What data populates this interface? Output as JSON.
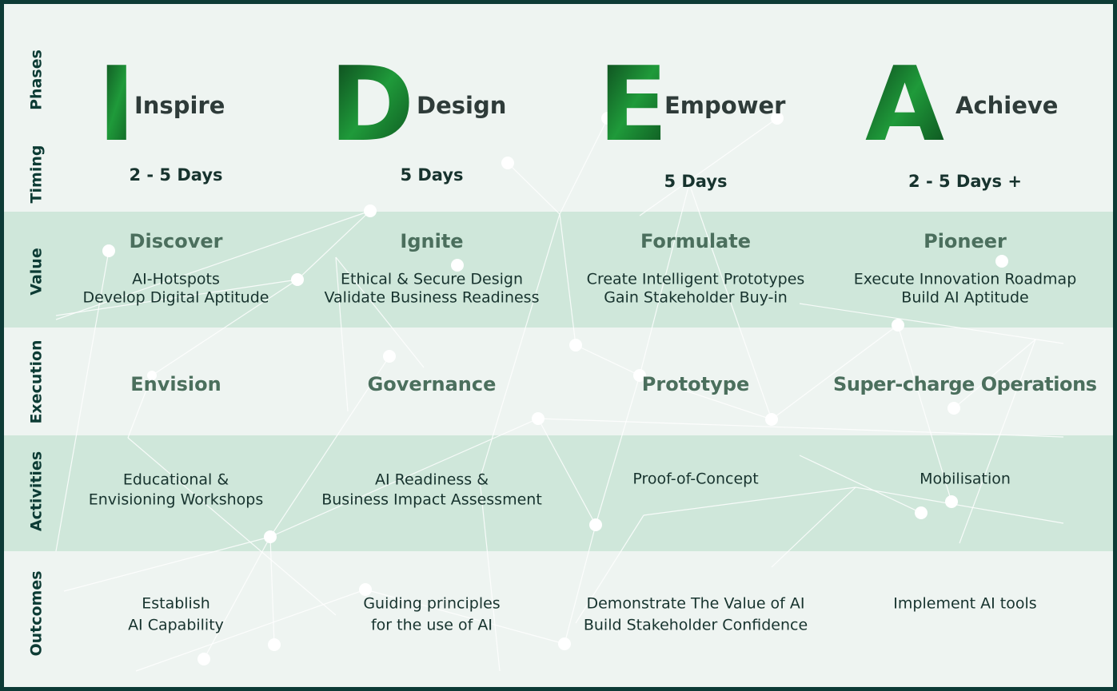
{
  "row_labels": [
    "Phases",
    "Timing",
    "Value",
    "Execution",
    "Activities",
    "Outcomes"
  ],
  "phases": [
    {
      "letter": "I",
      "name": "Inspire",
      "timing": "2 - 5 Days",
      "value_title": "Discover",
      "value_lines": [
        "AI-Hotspots",
        "Develop Digital Aptitude"
      ],
      "execution": "Envision",
      "activities": [
        "Educational &",
        "Envisioning Workshops"
      ],
      "outcomes": [
        "Establish",
        "AI Capability"
      ]
    },
    {
      "letter": "D",
      "name": "Design",
      "timing": "5 Days",
      "value_title": "Ignite",
      "value_lines": [
        "Ethical & Secure Design",
        "Validate Business Readiness"
      ],
      "execution": "Governance",
      "activities": [
        "AI Readiness &",
        "Business Impact Assessment"
      ],
      "outcomes": [
        "Guiding principles",
        "for the use of AI"
      ]
    },
    {
      "letter": "E",
      "name": "Empower",
      "timing": "5 Days",
      "value_title": "Formulate",
      "value_lines": [
        "Create Intelligent Prototypes",
        "Gain Stakeholder Buy-in"
      ],
      "execution": "Prototype",
      "activities": [
        "Proof-of-Concept"
      ],
      "outcomes": [
        "Demonstrate The Value of AI",
        "Build Stakeholder Confidence"
      ]
    },
    {
      "letter": "A",
      "name": "Achieve",
      "timing": "2 - 5 Days +",
      "value_title": "Pioneer",
      "value_lines": [
        "Execute Innovation Roadmap",
        "Build AI Aptitude"
      ],
      "execution": "Super-charge Operations",
      "activities": [
        "Mobilisation"
      ],
      "outcomes": [
        "Implement AI tools"
      ]
    }
  ]
}
